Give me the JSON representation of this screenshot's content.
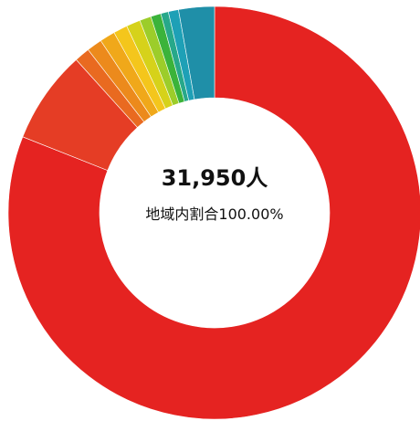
{
  "chart_data": {
    "type": "pie",
    "style": "donut",
    "center_total": "31,950人",
    "center_share": "地域内割合100.00%",
    "slices": [
      {
        "value": 81.0,
        "color": "#e52321"
      },
      {
        "value": 7.3,
        "color": "#e53d25"
      },
      {
        "value": 1.2,
        "color": "#e96a20"
      },
      {
        "value": 1.2,
        "color": "#ec8a1c"
      },
      {
        "value": 1.2,
        "color": "#f0a81a"
      },
      {
        "value": 1.1,
        "color": "#f4c61c"
      },
      {
        "value": 1.1,
        "color": "#d6d21a"
      },
      {
        "value": 0.9,
        "color": "#9ccd2a"
      },
      {
        "value": 0.8,
        "color": "#3bb33a"
      },
      {
        "value": 0.6,
        "color": "#27a88a"
      },
      {
        "value": 0.8,
        "color": "#1ea0b6"
      },
      {
        "value": 2.8,
        "color": "#1f8fa8"
      }
    ]
  }
}
